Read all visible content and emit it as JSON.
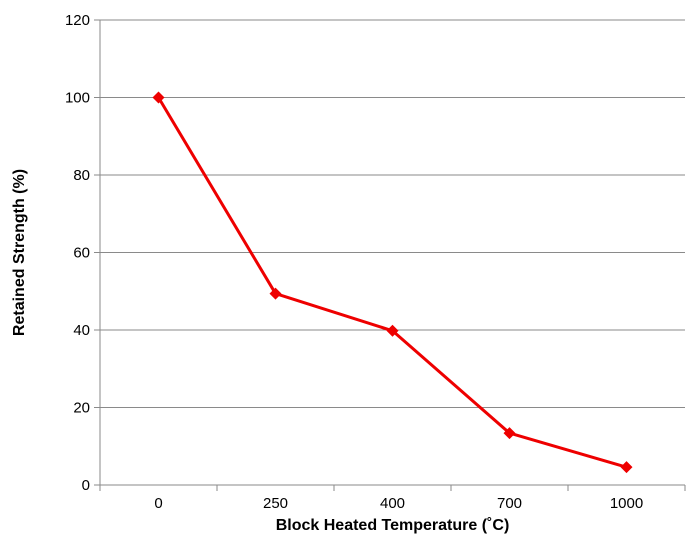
{
  "chart_data": {
    "type": "line",
    "title": "",
    "xlabel": "Block Heated Temperature (˚C)",
    "ylabel": "Retained Strength (%)",
    "categories": [
      "0",
      "250",
      "400",
      "700",
      "1000"
    ],
    "series": [
      {
        "values": [
          100,
          49.4,
          39.8,
          13.4,
          4.6
        ],
        "color": "#ee0000",
        "marker": "diamond"
      }
    ],
    "ylim": [
      0,
      120
    ],
    "yticks": [
      0,
      20,
      40,
      60,
      80,
      100,
      120
    ],
    "grid": true,
    "legend": "none"
  }
}
